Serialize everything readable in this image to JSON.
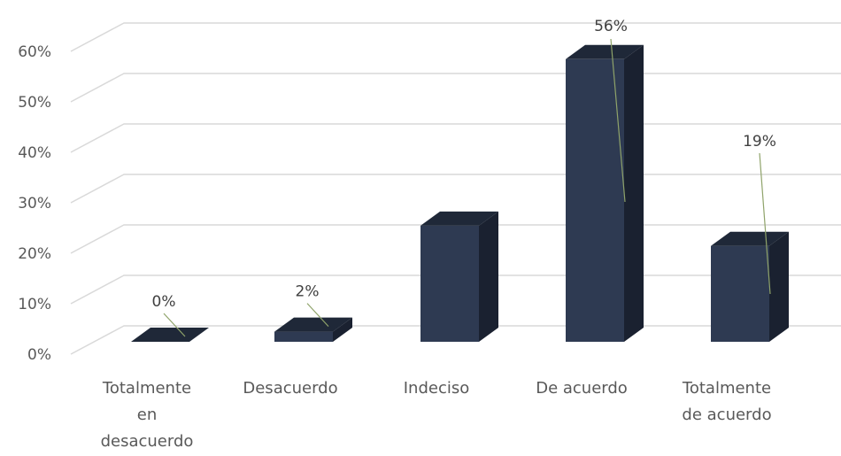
{
  "chart_data": {
    "type": "bar",
    "style": "3d-column",
    "categories": [
      [
        "Totalmente",
        "en",
        "desacuerdo"
      ],
      [
        "Desacuerdo"
      ],
      [
        "Indeciso"
      ],
      [
        "De acuerdo"
      ],
      [
        "Totalmente",
        "de acuerdo"
      ]
    ],
    "values": [
      0,
      2,
      23,
      56,
      19
    ],
    "data_labels": [
      "0%",
      "2%",
      "",
      "56%",
      "19%"
    ],
    "y_ticks": [
      "0%",
      "10%",
      "20%",
      "30%",
      "40%",
      "50%",
      "60%"
    ],
    "ylim": [
      0,
      60
    ],
    "grid": true,
    "legend": "none",
    "colors": {
      "bar_front": "#2e3a52",
      "bar_top": "#1f2838",
      "bar_side": "#1a2130",
      "grid": "#d9d9d9",
      "leader_line": "#8fa36a",
      "text": "#595959"
    }
  }
}
